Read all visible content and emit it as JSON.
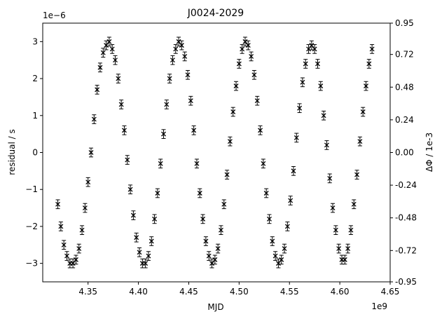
{
  "chart_data": {
    "type": "scatter",
    "title": "J0024-2029",
    "xlabel": "MJD",
    "ylabel": "residual / s",
    "y2label": "ΔΦ / 1e-3",
    "x_offset_label": "1e9",
    "y_offset_label": "1e−6",
    "xlim": [
      4.305,
      4.65
    ],
    "ylim": [
      -3.5,
      3.5
    ],
    "y2lim": [
      -0.95,
      0.95
    ],
    "xticks": [
      4.35,
      4.4,
      4.45,
      4.5,
      4.55,
      4.6,
      4.65
    ],
    "xtick_labels": [
      "4.35",
      "4.40",
      "4.45",
      "4.50",
      "4.55",
      "4.60",
      "4.65"
    ],
    "yticks": [
      -3,
      -2,
      -1,
      0,
      1,
      2,
      3
    ],
    "ytick_labels": [
      "−3",
      "−2",
      "−1",
      "0",
      "1",
      "2",
      "3"
    ],
    "y2ticks": [
      -0.95,
      -0.72,
      -0.48,
      -0.24,
      0.0,
      0.24,
      0.48,
      0.72,
      0.95
    ],
    "y2tick_labels": [
      "-0.95",
      "-0.72",
      "-0.48",
      "-0.24",
      "0.00",
      "0.24",
      "0.48",
      "0.72",
      "0.95"
    ],
    "grid": false,
    "legend": "none",
    "marker": "x",
    "marker_color": "#000000",
    "errorbar_color": "#000000",
    "yerr": 0.12,
    "series": [
      {
        "x": [
          4.32,
          4.323,
          4.326,
          4.329,
          4.332,
          4.335,
          4.338,
          4.341,
          4.344,
          4.347,
          4.35,
          4.353,
          4.356,
          4.359,
          4.362,
          4.365,
          4.368,
          4.371,
          4.374,
          4.377,
          4.38,
          4.383,
          4.386,
          4.389,
          4.392,
          4.395,
          4.398,
          4.401,
          4.404,
          4.407,
          4.41,
          4.413,
          4.416,
          4.419,
          4.422,
          4.425,
          4.428,
          4.431,
          4.434,
          4.437,
          4.44,
          4.443,
          4.446,
          4.449,
          4.452,
          4.455,
          4.458,
          4.461,
          4.464,
          4.467,
          4.47,
          4.473,
          4.476,
          4.479,
          4.482,
          4.485,
          4.488,
          4.491,
          4.494,
          4.497,
          4.5,
          4.503,
          4.506,
          4.509,
          4.512,
          4.515,
          4.518,
          4.521,
          4.524,
          4.527,
          4.53,
          4.533,
          4.536,
          4.539,
          4.542,
          4.545,
          4.548,
          4.551,
          4.554,
          4.557,
          4.56,
          4.563,
          4.566,
          4.569,
          4.572,
          4.575,
          4.578,
          4.581,
          4.584,
          4.587,
          4.59,
          4.593,
          4.596,
          4.599,
          4.602,
          4.605,
          4.608,
          4.611,
          4.614,
          4.617,
          4.62,
          4.623,
          4.626,
          4.629,
          4.632
        ],
        "y": [
          -1.4,
          -2.0,
          -2.5,
          -2.8,
          -3.0,
          -3.0,
          -2.9,
          -2.6,
          -2.1,
          -1.5,
          -0.8,
          0.0,
          0.9,
          1.7,
          2.3,
          2.7,
          2.9,
          3.0,
          2.8,
          2.5,
          2.0,
          1.3,
          0.6,
          -0.2,
          -1.0,
          -1.7,
          -2.3,
          -2.7,
          -3.0,
          -3.0,
          -2.8,
          -2.4,
          -1.8,
          -1.1,
          -0.3,
          0.5,
          1.3,
          2.0,
          2.5,
          2.8,
          3.0,
          2.9,
          2.6,
          2.1,
          1.4,
          0.6,
          -0.3,
          -1.1,
          -1.8,
          -2.4,
          -2.8,
          -3.0,
          -2.9,
          -2.6,
          -2.1,
          -1.4,
          -0.6,
          0.3,
          1.1,
          1.8,
          2.4,
          2.8,
          3.0,
          2.9,
          2.6,
          2.1,
          1.4,
          0.6,
          -0.3,
          -1.1,
          -1.8,
          -2.4,
          -2.8,
          -3.0,
          -2.9,
          -2.6,
          -2.0,
          -1.3,
          -0.5,
          0.4,
          1.2,
          1.9,
          2.4,
          2.8,
          2.9,
          2.8,
          2.4,
          1.8,
          1.0,
          0.2,
          -0.7,
          -1.5,
          -2.1,
          -2.6,
          -2.9,
          -2.9,
          -2.6,
          -2.1,
          -1.4,
          -0.6,
          0.3,
          1.1,
          1.8,
          2.4,
          2.8
        ]
      }
    ]
  }
}
